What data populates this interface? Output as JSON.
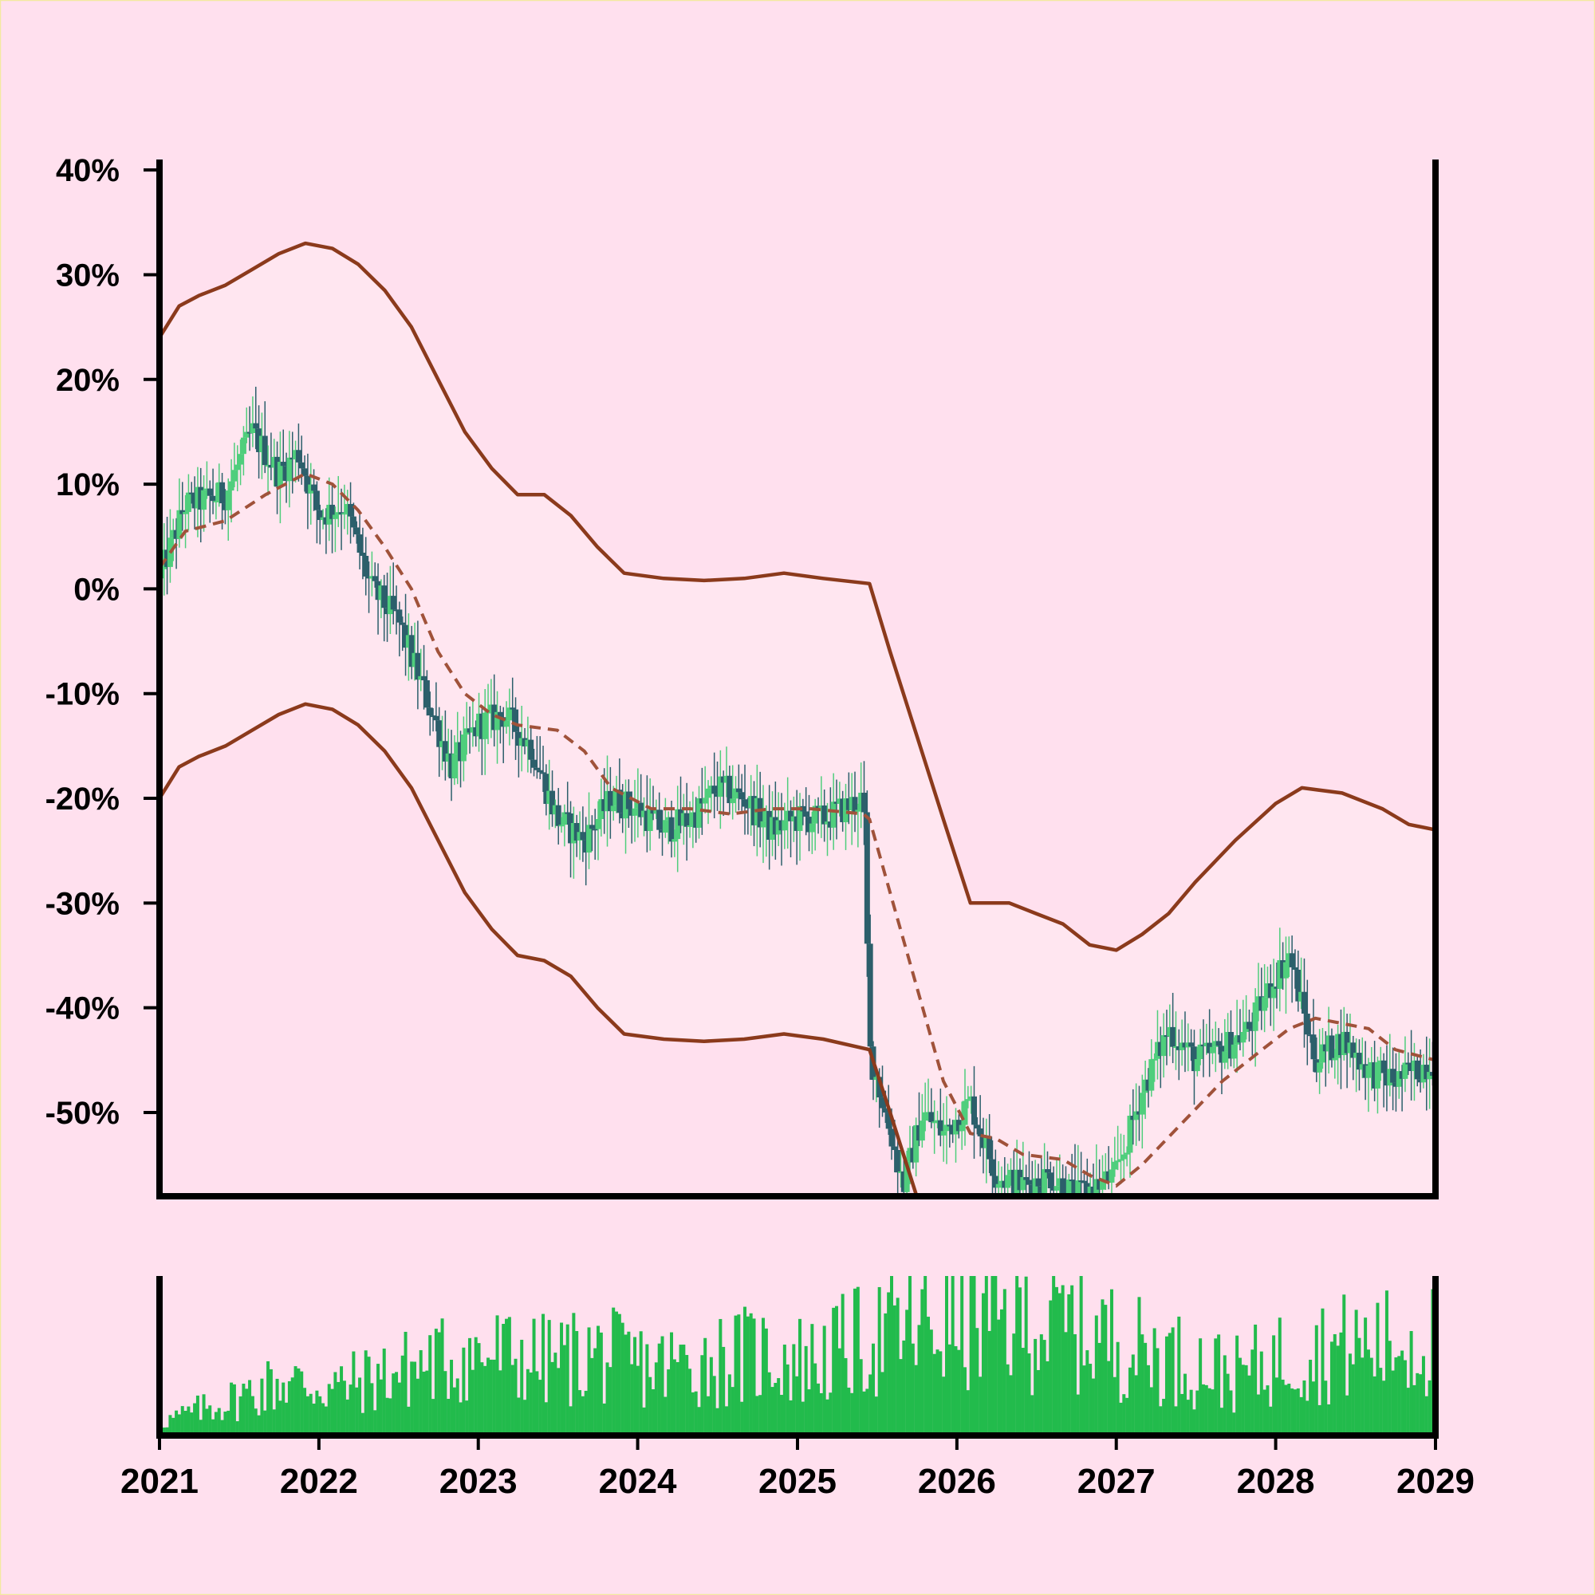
{
  "chart_data": [
    {
      "type": "candlestick",
      "title": "",
      "xlabel": "",
      "ylabel": "",
      "x_range": [
        "2021-01-01",
        "2029-01-01"
      ],
      "ylim": [
        -58,
        41
      ],
      "y_ticks": [
        40,
        30,
        20,
        10,
        0,
        -10,
        -20,
        -30,
        -40,
        -50
      ],
      "y_tick_labels": [
        "40%",
        "30%",
        "20%",
        "10%",
        "0%",
        "-10%",
        "-20%",
        "-30%",
        "-40%",
        "-50%"
      ],
      "grid": false,
      "legend": "none",
      "colors": {
        "up": "#4fce7c",
        "down": "#2c5f6b",
        "band": "#8b3a1c",
        "middle": "#a0523a",
        "band_fill": "#ffe6f0",
        "background": "#ffe0ee",
        "axis": "#000000"
      },
      "close_keypoints": [
        [
          "2021-01-01",
          1
        ],
        [
          "2021-03-01",
          8
        ],
        [
          "2021-06-01",
          9
        ],
        [
          "2021-08-01",
          15
        ],
        [
          "2021-10-01",
          11
        ],
        [
          "2021-11-15",
          13
        ],
        [
          "2022-01-01",
          7
        ],
        [
          "2022-03-01",
          8
        ],
        [
          "2022-05-01",
          0
        ],
        [
          "2022-07-01",
          -3
        ],
        [
          "2022-09-01",
          -10
        ],
        [
          "2022-11-01",
          -17
        ],
        [
          "2023-01-01",
          -13
        ],
        [
          "2023-03-01",
          -12
        ],
        [
          "2023-05-01",
          -15
        ],
        [
          "2023-07-01",
          -22
        ],
        [
          "2023-09-01",
          -24
        ],
        [
          "2023-11-01",
          -20
        ],
        [
          "2024-01-01",
          -21
        ],
        [
          "2024-03-01",
          -23
        ],
        [
          "2024-05-01",
          -22
        ],
        [
          "2024-07-01",
          -19
        ],
        [
          "2024-09-01",
          -20
        ],
        [
          "2024-11-01",
          -23
        ],
        [
          "2025-01-01",
          -22
        ],
        [
          "2025-03-01",
          -22
        ],
        [
          "2025-06-01",
          -20
        ],
        [
          "2025-06-15",
          -44
        ],
        [
          "2025-09-01",
          -57
        ],
        [
          "2025-10-15",
          -50
        ],
        [
          "2025-12-01",
          -52
        ],
        [
          "2026-02-01",
          -49
        ],
        [
          "2026-04-01",
          -56
        ],
        [
          "2026-06-01",
          -57
        ],
        [
          "2026-08-01",
          -56
        ],
        [
          "2026-10-01",
          -58
        ],
        [
          "2027-01-01",
          -56
        ],
        [
          "2027-03-01",
          -48
        ],
        [
          "2027-05-01",
          -42
        ],
        [
          "2027-07-01",
          -45
        ],
        [
          "2027-09-01",
          -44
        ],
        [
          "2027-11-01",
          -42
        ],
        [
          "2028-01-01",
          -37
        ],
        [
          "2028-02-01",
          -35
        ],
        [
          "2028-04-01",
          -45
        ],
        [
          "2028-06-01",
          -43
        ],
        [
          "2028-08-01",
          -46
        ],
        [
          "2028-10-01",
          -47
        ],
        [
          "2028-12-31",
          -45
        ]
      ],
      "middle_band": [
        [
          "2021-01-01",
          2
        ],
        [
          "2021-03-01",
          5.5
        ],
        [
          "2021-06-01",
          6.5
        ],
        [
          "2021-09-01",
          9
        ],
        [
          "2021-12-01",
          11
        ],
        [
          "2022-02-01",
          10
        ],
        [
          "2022-04-01",
          7.5
        ],
        [
          "2022-06-01",
          4
        ],
        [
          "2022-08-01",
          0
        ],
        [
          "2022-10-01",
          -6
        ],
        [
          "2022-12-01",
          -10
        ],
        [
          "2023-02-01",
          -12
        ],
        [
          "2023-04-01",
          -13
        ],
        [
          "2023-07-01",
          -13.5
        ],
        [
          "2023-09-01",
          -15.5
        ],
        [
          "2023-11-01",
          -19
        ],
        [
          "2024-02-01",
          -21
        ],
        [
          "2024-05-01",
          -21
        ],
        [
          "2024-08-01",
          -21.5
        ],
        [
          "2024-11-01",
          -21
        ],
        [
          "2025-02-01",
          -21
        ],
        [
          "2025-06-01",
          -21.5
        ],
        [
          "2025-06-15",
          -22
        ],
        [
          "2025-08-01",
          -29
        ],
        [
          "2025-10-01",
          -38
        ],
        [
          "2025-12-01",
          -47
        ],
        [
          "2026-02-01",
          -52
        ],
        [
          "2026-04-01",
          -52.5
        ],
        [
          "2026-06-01",
          -54
        ],
        [
          "2026-09-01",
          -54.5
        ],
        [
          "2026-11-01",
          -56
        ],
        [
          "2027-01-01",
          -57
        ],
        [
          "2027-03-01",
          -55
        ],
        [
          "2027-06-01",
          -51
        ],
        [
          "2027-09-01",
          -47
        ],
        [
          "2027-12-01",
          -44
        ],
        [
          "2028-02-01",
          -42
        ],
        [
          "2028-04-01",
          -41
        ],
        [
          "2028-06-01",
          -41.5
        ],
        [
          "2028-08-01",
          -42
        ],
        [
          "2028-10-01",
          -44
        ],
        [
          "2028-12-31",
          -45
        ]
      ],
      "upper_band": [
        [
          "2021-01-01",
          24
        ],
        [
          "2021-02-15",
          27
        ],
        [
          "2021-04-01",
          28
        ],
        [
          "2021-06-01",
          29
        ],
        [
          "2021-08-01",
          30.5
        ],
        [
          "2021-10-01",
          32
        ],
        [
          "2021-12-01",
          33
        ],
        [
          "2022-02-01",
          32.5
        ],
        [
          "2022-04-01",
          31
        ],
        [
          "2022-06-01",
          28.5
        ],
        [
          "2022-08-01",
          25
        ],
        [
          "2022-10-01",
          20
        ],
        [
          "2022-12-01",
          15
        ],
        [
          "2023-02-01",
          11.5
        ],
        [
          "2023-04-01",
          9
        ],
        [
          "2023-06-01",
          9
        ],
        [
          "2023-08-01",
          7
        ],
        [
          "2023-10-01",
          4
        ],
        [
          "2023-12-01",
          1.5
        ],
        [
          "2024-03-01",
          1
        ],
        [
          "2024-06-01",
          0.8
        ],
        [
          "2024-09-01",
          1
        ],
        [
          "2024-12-01",
          1.5
        ],
        [
          "2025-03-01",
          1
        ],
        [
          "2025-06-15",
          0.5
        ],
        [
          "2025-08-01",
          -6
        ],
        [
          "2025-10-01",
          -14
        ],
        [
          "2025-12-01",
          -22
        ],
        [
          "2026-02-01",
          -30
        ],
        [
          "2026-05-01",
          -30
        ],
        [
          "2026-07-01",
          -31
        ],
        [
          "2026-09-01",
          -32
        ],
        [
          "2026-11-01",
          -34
        ],
        [
          "2027-01-01",
          -34.5
        ],
        [
          "2027-03-01",
          -33
        ],
        [
          "2027-05-01",
          -31
        ],
        [
          "2027-07-01",
          -28
        ],
        [
          "2027-10-01",
          -24
        ],
        [
          "2028-01-01",
          -20.5
        ],
        [
          "2028-03-01",
          -19
        ],
        [
          "2028-06-01",
          -19.5
        ],
        [
          "2028-09-01",
          -21
        ],
        [
          "2028-11-01",
          -22.5
        ],
        [
          "2028-12-31",
          -23
        ]
      ],
      "lower_band": [
        [
          "2021-01-01",
          -20
        ],
        [
          "2021-02-15",
          -17
        ],
        [
          "2021-04-01",
          -16
        ],
        [
          "2021-06-01",
          -15
        ],
        [
          "2021-08-01",
          -13.5
        ],
        [
          "2021-10-01",
          -12
        ],
        [
          "2021-12-01",
          -11
        ],
        [
          "2022-02-01",
          -11.5
        ],
        [
          "2022-04-01",
          -13
        ],
        [
          "2022-06-01",
          -15.5
        ],
        [
          "2022-08-01",
          -19
        ],
        [
          "2022-10-01",
          -24
        ],
        [
          "2022-12-01",
          -29
        ],
        [
          "2023-02-01",
          -32.5
        ],
        [
          "2023-04-01",
          -35
        ],
        [
          "2023-06-01",
          -35.5
        ],
        [
          "2023-08-01",
          -37
        ],
        [
          "2023-10-01",
          -40
        ],
        [
          "2023-12-01",
          -42.5
        ],
        [
          "2024-03-01",
          -43
        ],
        [
          "2024-06-01",
          -43.2
        ],
        [
          "2024-09-01",
          -43
        ],
        [
          "2024-12-01",
          -42.5
        ],
        [
          "2025-03-01",
          -43
        ],
        [
          "2025-06-15",
          -44
        ],
        [
          "2025-08-01",
          -50
        ],
        [
          "2025-10-01",
          -58
        ]
      ],
      "volume_keypoints": [
        [
          "2021-01-01",
          10
        ],
        [
          "2021-06-01",
          25
        ],
        [
          "2021-10-01",
          40
        ],
        [
          "2022-02-01",
          35
        ],
        [
          "2022-06-01",
          45
        ],
        [
          "2022-10-01",
          55
        ],
        [
          "2023-02-01",
          60
        ],
        [
          "2023-06-01",
          55
        ],
        [
          "2023-10-01",
          60
        ],
        [
          "2024-02-01",
          50
        ],
        [
          "2024-06-01",
          55
        ],
        [
          "2024-10-01",
          60
        ],
        [
          "2025-02-01",
          55
        ],
        [
          "2025-06-01",
          70
        ],
        [
          "2025-10-01",
          80
        ],
        [
          "2026-02-01",
          85
        ],
        [
          "2026-06-01",
          85
        ],
        [
          "2026-10-01",
          80
        ],
        [
          "2027-02-01",
          65
        ],
        [
          "2027-06-01",
          55
        ],
        [
          "2027-10-01",
          45
        ],
        [
          "2028-02-01",
          60
        ],
        [
          "2028-06-01",
          65
        ],
        [
          "2028-12-31",
          70
        ]
      ],
      "volume_max": 100
    }
  ],
  "x_axis": {
    "tick_labels": [
      "2021",
      "2022",
      "2023",
      "2024",
      "2025",
      "2026",
      "2027",
      "2028",
      "2029"
    ],
    "tick_dates": [
      "2021-01-01",
      "2022-01-01",
      "2023-01-01",
      "2024-01-01",
      "2025-01-01",
      "2026-01-01",
      "2027-01-01",
      "2028-01-01",
      "2029-01-01"
    ]
  }
}
